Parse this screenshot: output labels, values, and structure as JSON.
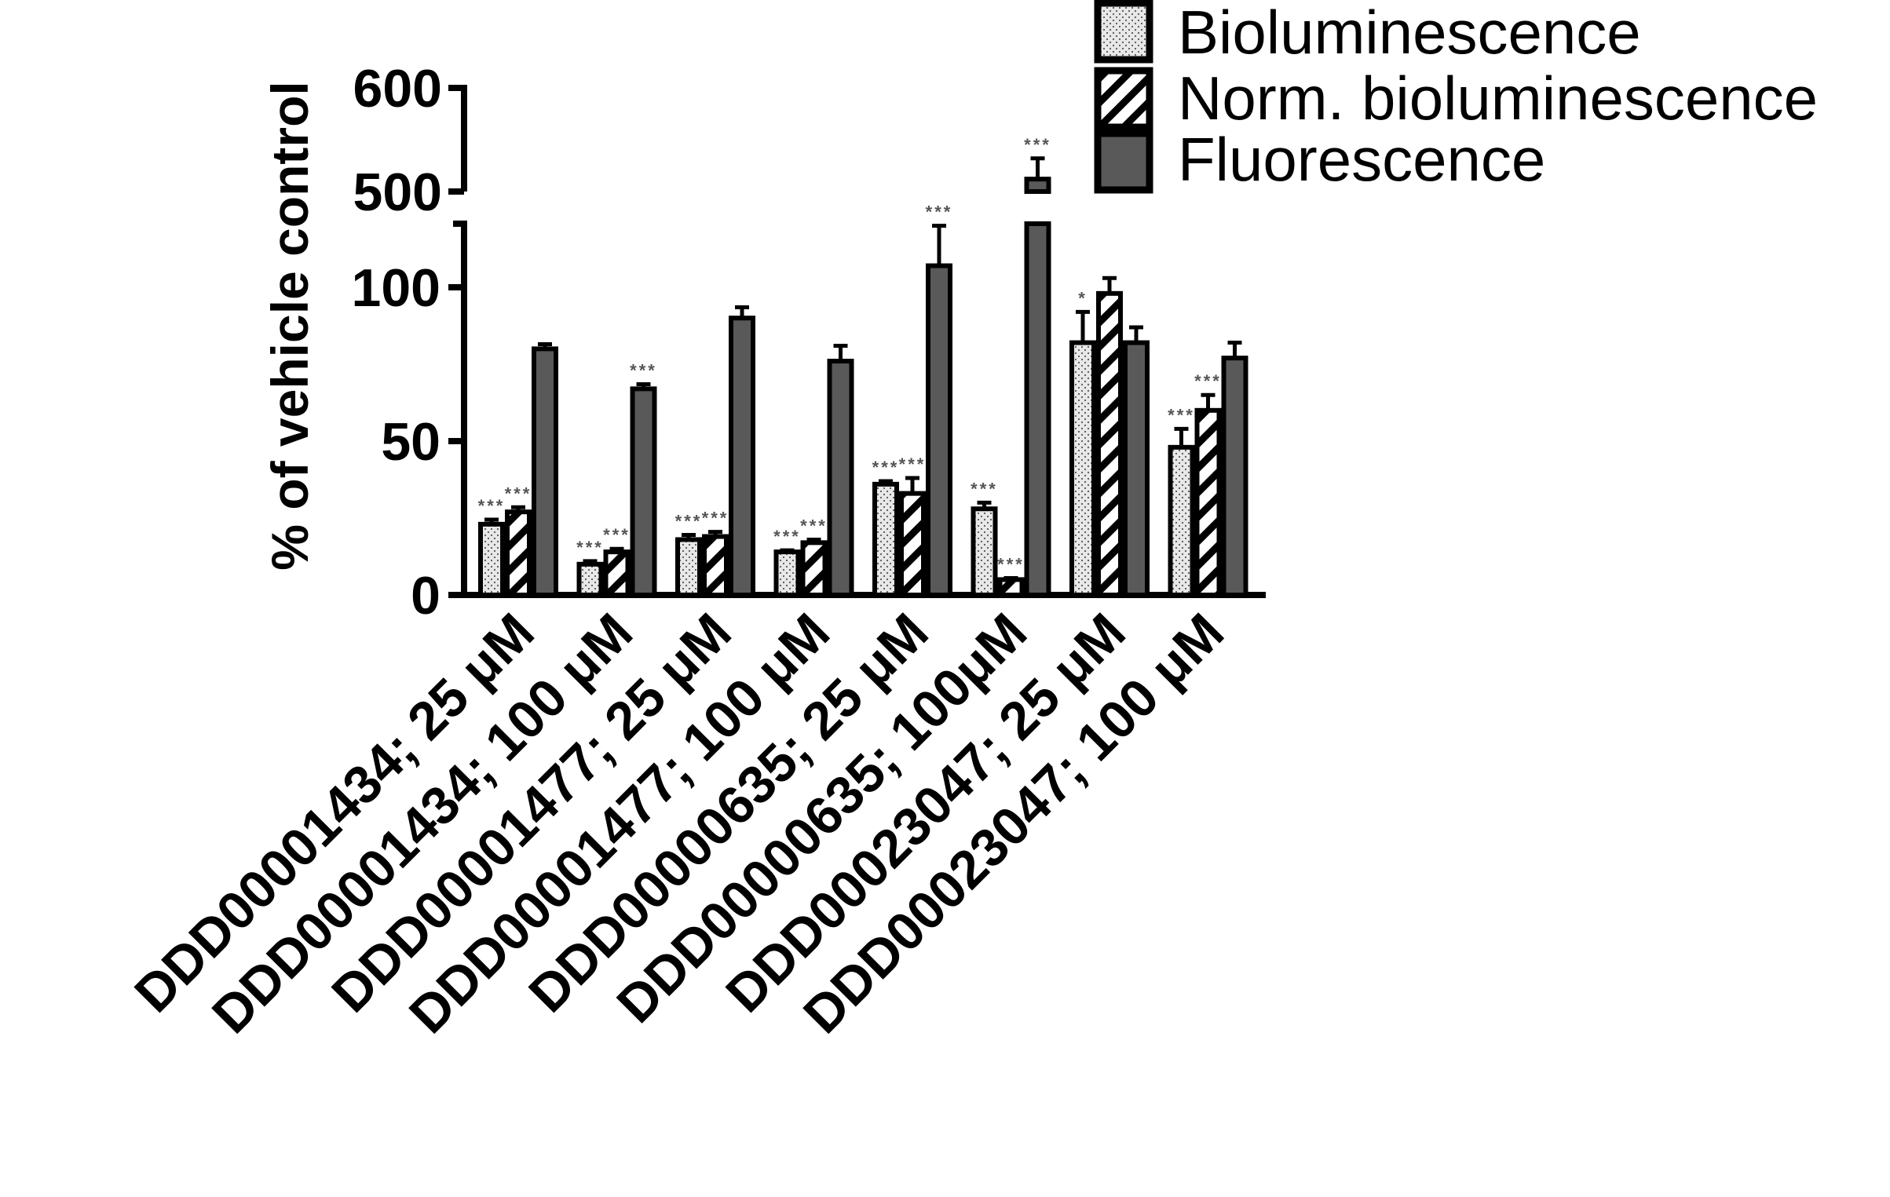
{
  "chart_data": {
    "type": "bar",
    "ylabel": "% of vehicle control",
    "xlabel": "",
    "y_axis_break": {
      "lower_range": [
        0,
        120
      ],
      "upper_range": [
        500,
        600
      ],
      "lower_ticks": [
        "0",
        "50",
        "100"
      ],
      "upper_ticks": [
        "500",
        "600"
      ]
    },
    "categories": [
      "DDD00001434; 25 μM",
      "DDD00001434; 100 μM",
      "DDD00001477; 25 μM",
      "DDD00001477; 100 μM",
      "DDD00000635; 25 μM",
      "DDD00000635; 100μM",
      "DDD00023047; 25 μM",
      "DDD00023047; 100 μM"
    ],
    "series": [
      {
        "name": "Bioluminescence",
        "pattern": "dots",
        "fill": "#e6e6e6",
        "values": [
          23,
          10,
          18,
          14,
          36,
          28,
          82,
          48
        ],
        "errors": [
          1.5,
          1,
          1.5,
          0.5,
          1,
          2,
          10,
          6
        ],
        "significance": [
          "***",
          "***",
          "***",
          "***",
          "***",
          "***",
          "*",
          "***"
        ]
      },
      {
        "name": "Norm. bioluminescence",
        "pattern": "diagonal-stripes",
        "fill": "#ffffff",
        "values": [
          27,
          14,
          19,
          17,
          33,
          5,
          98,
          60
        ],
        "errors": [
          1.5,
          1,
          1.5,
          1,
          5,
          0.5,
          5,
          5
        ],
        "significance": [
          "***",
          "***",
          "***",
          "***",
          "***",
          "***",
          "",
          "***"
        ]
      },
      {
        "name": "Fluorescence",
        "pattern": "solid",
        "fill": "#595959",
        "values": [
          80,
          67,
          90,
          76,
          107,
          512,
          82,
          77
        ],
        "errors": [
          1.5,
          1.5,
          3.5,
          5,
          13,
          20,
          5,
          5
        ],
        "significance": [
          "",
          "***",
          "",
          "",
          "***",
          "***",
          "",
          ""
        ]
      }
    ],
    "legend": {
      "placement": "top-right",
      "entries": [
        "Bioluminescence",
        "Norm. bioluminescence",
        "Fluorescence"
      ]
    },
    "grid": false
  }
}
